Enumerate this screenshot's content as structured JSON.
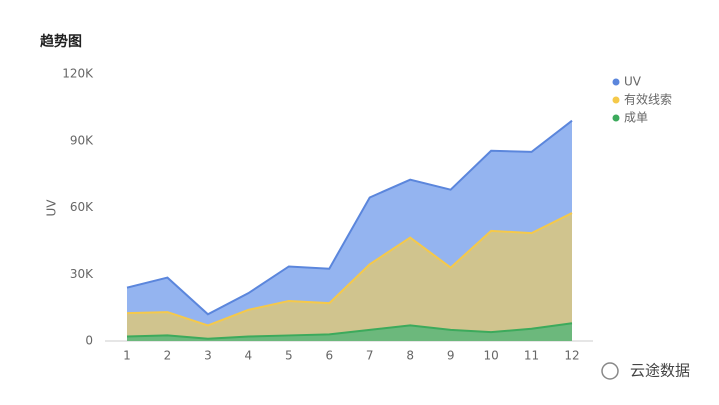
{
  "chart_data": {
    "type": "area",
    "title": "趋势图",
    "ylabel": "UV",
    "categories": [
      "1",
      "2",
      "3",
      "4",
      "5",
      "6",
      "7",
      "8",
      "9",
      "10",
      "11",
      "12"
    ],
    "series": [
      {
        "name": "UV",
        "color": "#5b86dc",
        "fill": "#94b4f0",
        "values": [
          24000,
          28500,
          12000,
          21500,
          33500,
          32500,
          64500,
          72500,
          68000,
          85500,
          85000,
          99000
        ]
      },
      {
        "name": "有效线索",
        "color": "#f5c94a",
        "fill": "#d0c48e",
        "values": [
          12500,
          13000,
          7000,
          14000,
          18000,
          17000,
          34500,
          46500,
          33000,
          49500,
          48500,
          57500
        ]
      },
      {
        "name": "成单",
        "color": "#3caa5c",
        "fill": "#6cb87c",
        "values": [
          2000,
          2500,
          1000,
          2000,
          2500,
          3000,
          5000,
          7000,
          5000,
          4000,
          5500,
          8000
        ]
      }
    ],
    "ylim": [
      0,
      120000
    ],
    "yticks": [
      0,
      {
        "value": 30000,
        "label": "30K"
      },
      {
        "value": 60000,
        "label": "60K"
      },
      {
        "value": 90000,
        "label": "90K"
      },
      {
        "value": 120000,
        "label": "120K"
      }
    ],
    "legend": "right"
  },
  "watermark": "云途数据"
}
